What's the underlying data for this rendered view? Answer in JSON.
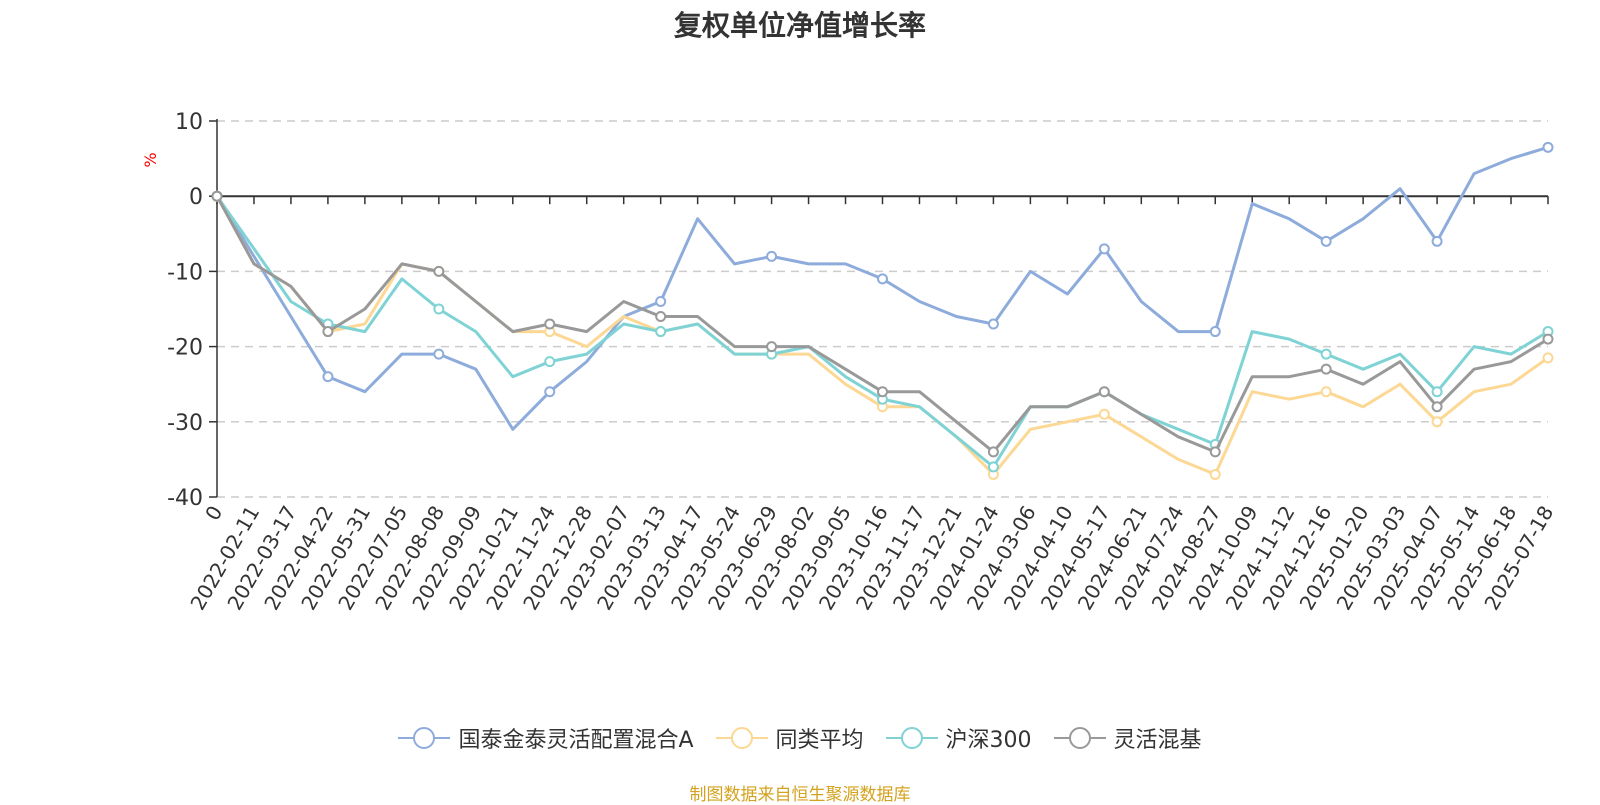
{
  "chart_data": {
    "type": "line",
    "title": "复权单位净值增长率",
    "ylabel": "%",
    "ylim": [
      -40,
      10
    ],
    "yticks": [
      "10",
      "0",
      "-10",
      "-20",
      "-30",
      "-40"
    ],
    "grid": true,
    "legend_position": "bottom",
    "x_labels": [
      "0",
      "2022-02-11",
      "2022-03-17",
      "2022-04-22",
      "2022-05-31",
      "2022-07-05",
      "2022-08-08",
      "2022-09-09",
      "2022-10-21",
      "2022-11-24",
      "2022-12-28",
      "2023-02-07",
      "2023-03-13",
      "2023-04-17",
      "2023-05-24",
      "2023-06-29",
      "2023-08-02",
      "2023-09-05",
      "2023-10-16",
      "2023-11-17",
      "2023-12-21",
      "2024-01-24",
      "2024-03-06",
      "2024-04-10",
      "2024-05-17",
      "2024-06-21",
      "2024-07-24",
      "2024-08-27",
      "2024-10-09",
      "2024-11-12",
      "2024-12-16",
      "2025-01-20",
      "2025-03-03",
      "2025-04-07",
      "2025-05-14",
      "2025-06-18",
      "2025-07-18"
    ],
    "series": [
      {
        "name": "国泰金泰灵活配置混合A",
        "color": "#8eacdb",
        "values": [
          0,
          -8,
          -16,
          -24,
          -26,
          -21,
          -21,
          -23,
          -31,
          -26,
          -22,
          -16,
          -14,
          -3,
          -9,
          -8,
          -9,
          -9,
          -11,
          -14,
          -16,
          -17,
          -10,
          -13,
          -7,
          -14,
          -18,
          -18,
          -1,
          -3,
          -6,
          -3,
          1,
          -6,
          3,
          5,
          6.5
        ]
      },
      {
        "name": "同类平均",
        "color": "#fcd894",
        "values": [
          0,
          -9,
          -12,
          -18,
          -17,
          -9,
          -10,
          -14,
          -18,
          -18,
          -20,
          -16,
          -18,
          -17,
          -21,
          -21,
          -21,
          -25,
          -28,
          -28,
          -32,
          -37,
          -31,
          -30,
          -29,
          -32,
          -35,
          -37,
          -26,
          -27,
          -26,
          -28,
          -25,
          -30,
          -26,
          -25,
          -21.5
        ]
      },
      {
        "name": "沪深300",
        "color": "#7fd3d5",
        "values": [
          0,
          -7,
          -14,
          -17,
          -18,
          -11,
          -15,
          -18,
          -24,
          -22,
          -21,
          -17,
          -18,
          -17,
          -21,
          -21,
          -20,
          -24,
          -27,
          -28,
          -32,
          -36,
          -28,
          -28,
          -26,
          -29,
          -31,
          -33,
          -18,
          -19,
          -21,
          -23,
          -21,
          -26,
          -20,
          -21,
          -18
        ]
      },
      {
        "name": "灵活混基",
        "color": "#999999",
        "values": [
          0,
          -9,
          -12,
          -18,
          -15,
          -9,
          -10,
          -14,
          -18,
          -17,
          -18,
          -14,
          -16,
          -16,
          -20,
          -20,
          -20,
          -23,
          -26,
          -26,
          -30,
          -34,
          -28,
          -28,
          -26,
          -29,
          -32,
          -34,
          -24,
          -24,
          -23,
          -25,
          -22,
          -28,
          -23,
          -22,
          -19
        ]
      }
    ],
    "source": "制图数据来自恒生聚源数据库"
  }
}
